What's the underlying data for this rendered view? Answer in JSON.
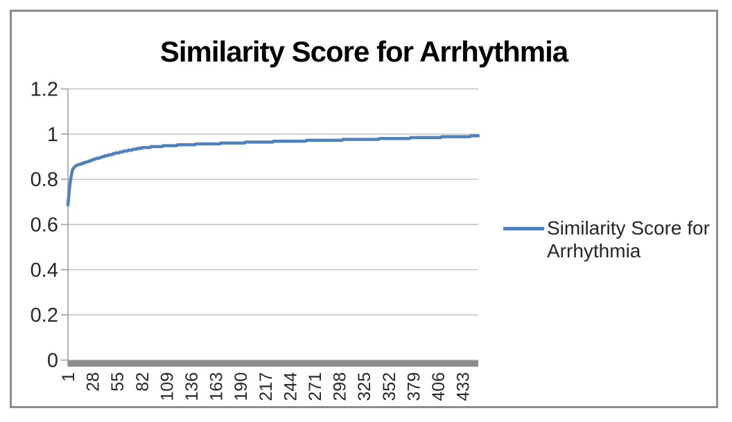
{
  "title": "Similarity Score for Arrhythmia",
  "legend": {
    "lines": [
      "Similarity Score for",
      "Arrhythmia"
    ]
  },
  "colors": {
    "line": "#4F81BD",
    "gridline": "#BFBFBF",
    "axis": "#999999",
    "axis_bar": "#8C8C8C",
    "border": "#8C8C8C",
    "label_text": "#262626",
    "title_text": "#000000",
    "background": "#FFFFFF"
  },
  "chart_data": {
    "type": "line",
    "title": "Similarity Score for Arrhythmia",
    "xlabel": "",
    "ylabel": "",
    "grid": "horizontal",
    "legend_position": "right",
    "x_range": [
      1,
      450
    ],
    "y_range": [
      0,
      1.2
    ],
    "y_ticks": [
      1.2,
      1,
      0.8,
      0.6,
      0.4,
      0.2,
      0
    ],
    "x_ticks": [
      1,
      28,
      55,
      82,
      109,
      136,
      163,
      190,
      217,
      244,
      271,
      298,
      325,
      352,
      379,
      406,
      433
    ],
    "series": [
      {
        "name": "Similarity Score for Arrhythmia",
        "color": "#4F81BD",
        "points": [
          [
            1,
            0.685
          ],
          [
            2,
            0.73
          ],
          [
            3,
            0.77
          ],
          [
            4,
            0.8
          ],
          [
            5,
            0.825
          ],
          [
            6,
            0.842
          ],
          [
            8,
            0.855
          ],
          [
            10,
            0.861
          ],
          [
            14,
            0.867
          ],
          [
            20,
            0.874
          ],
          [
            28,
            0.886
          ],
          [
            40,
            0.901
          ],
          [
            55,
            0.917
          ],
          [
            70,
            0.93
          ],
          [
            82,
            0.939
          ],
          [
            95,
            0.944
          ],
          [
            109,
            0.948
          ],
          [
            122,
            0.951
          ],
          [
            136,
            0.954
          ],
          [
            150,
            0.956
          ],
          [
            163,
            0.958
          ],
          [
            177,
            0.96
          ],
          [
            190,
            0.962
          ],
          [
            204,
            0.964
          ],
          [
            217,
            0.966
          ],
          [
            231,
            0.967
          ],
          [
            244,
            0.969
          ],
          [
            258,
            0.97
          ],
          [
            271,
            0.972
          ],
          [
            285,
            0.973
          ],
          [
            298,
            0.974
          ],
          [
            311,
            0.976
          ],
          [
            325,
            0.977
          ],
          [
            338,
            0.978
          ],
          [
            352,
            0.98
          ],
          [
            365,
            0.981
          ],
          [
            379,
            0.983
          ],
          [
            392,
            0.984
          ],
          [
            406,
            0.986
          ],
          [
            419,
            0.988
          ],
          [
            433,
            0.989
          ],
          [
            450,
            0.992
          ]
        ]
      }
    ]
  }
}
